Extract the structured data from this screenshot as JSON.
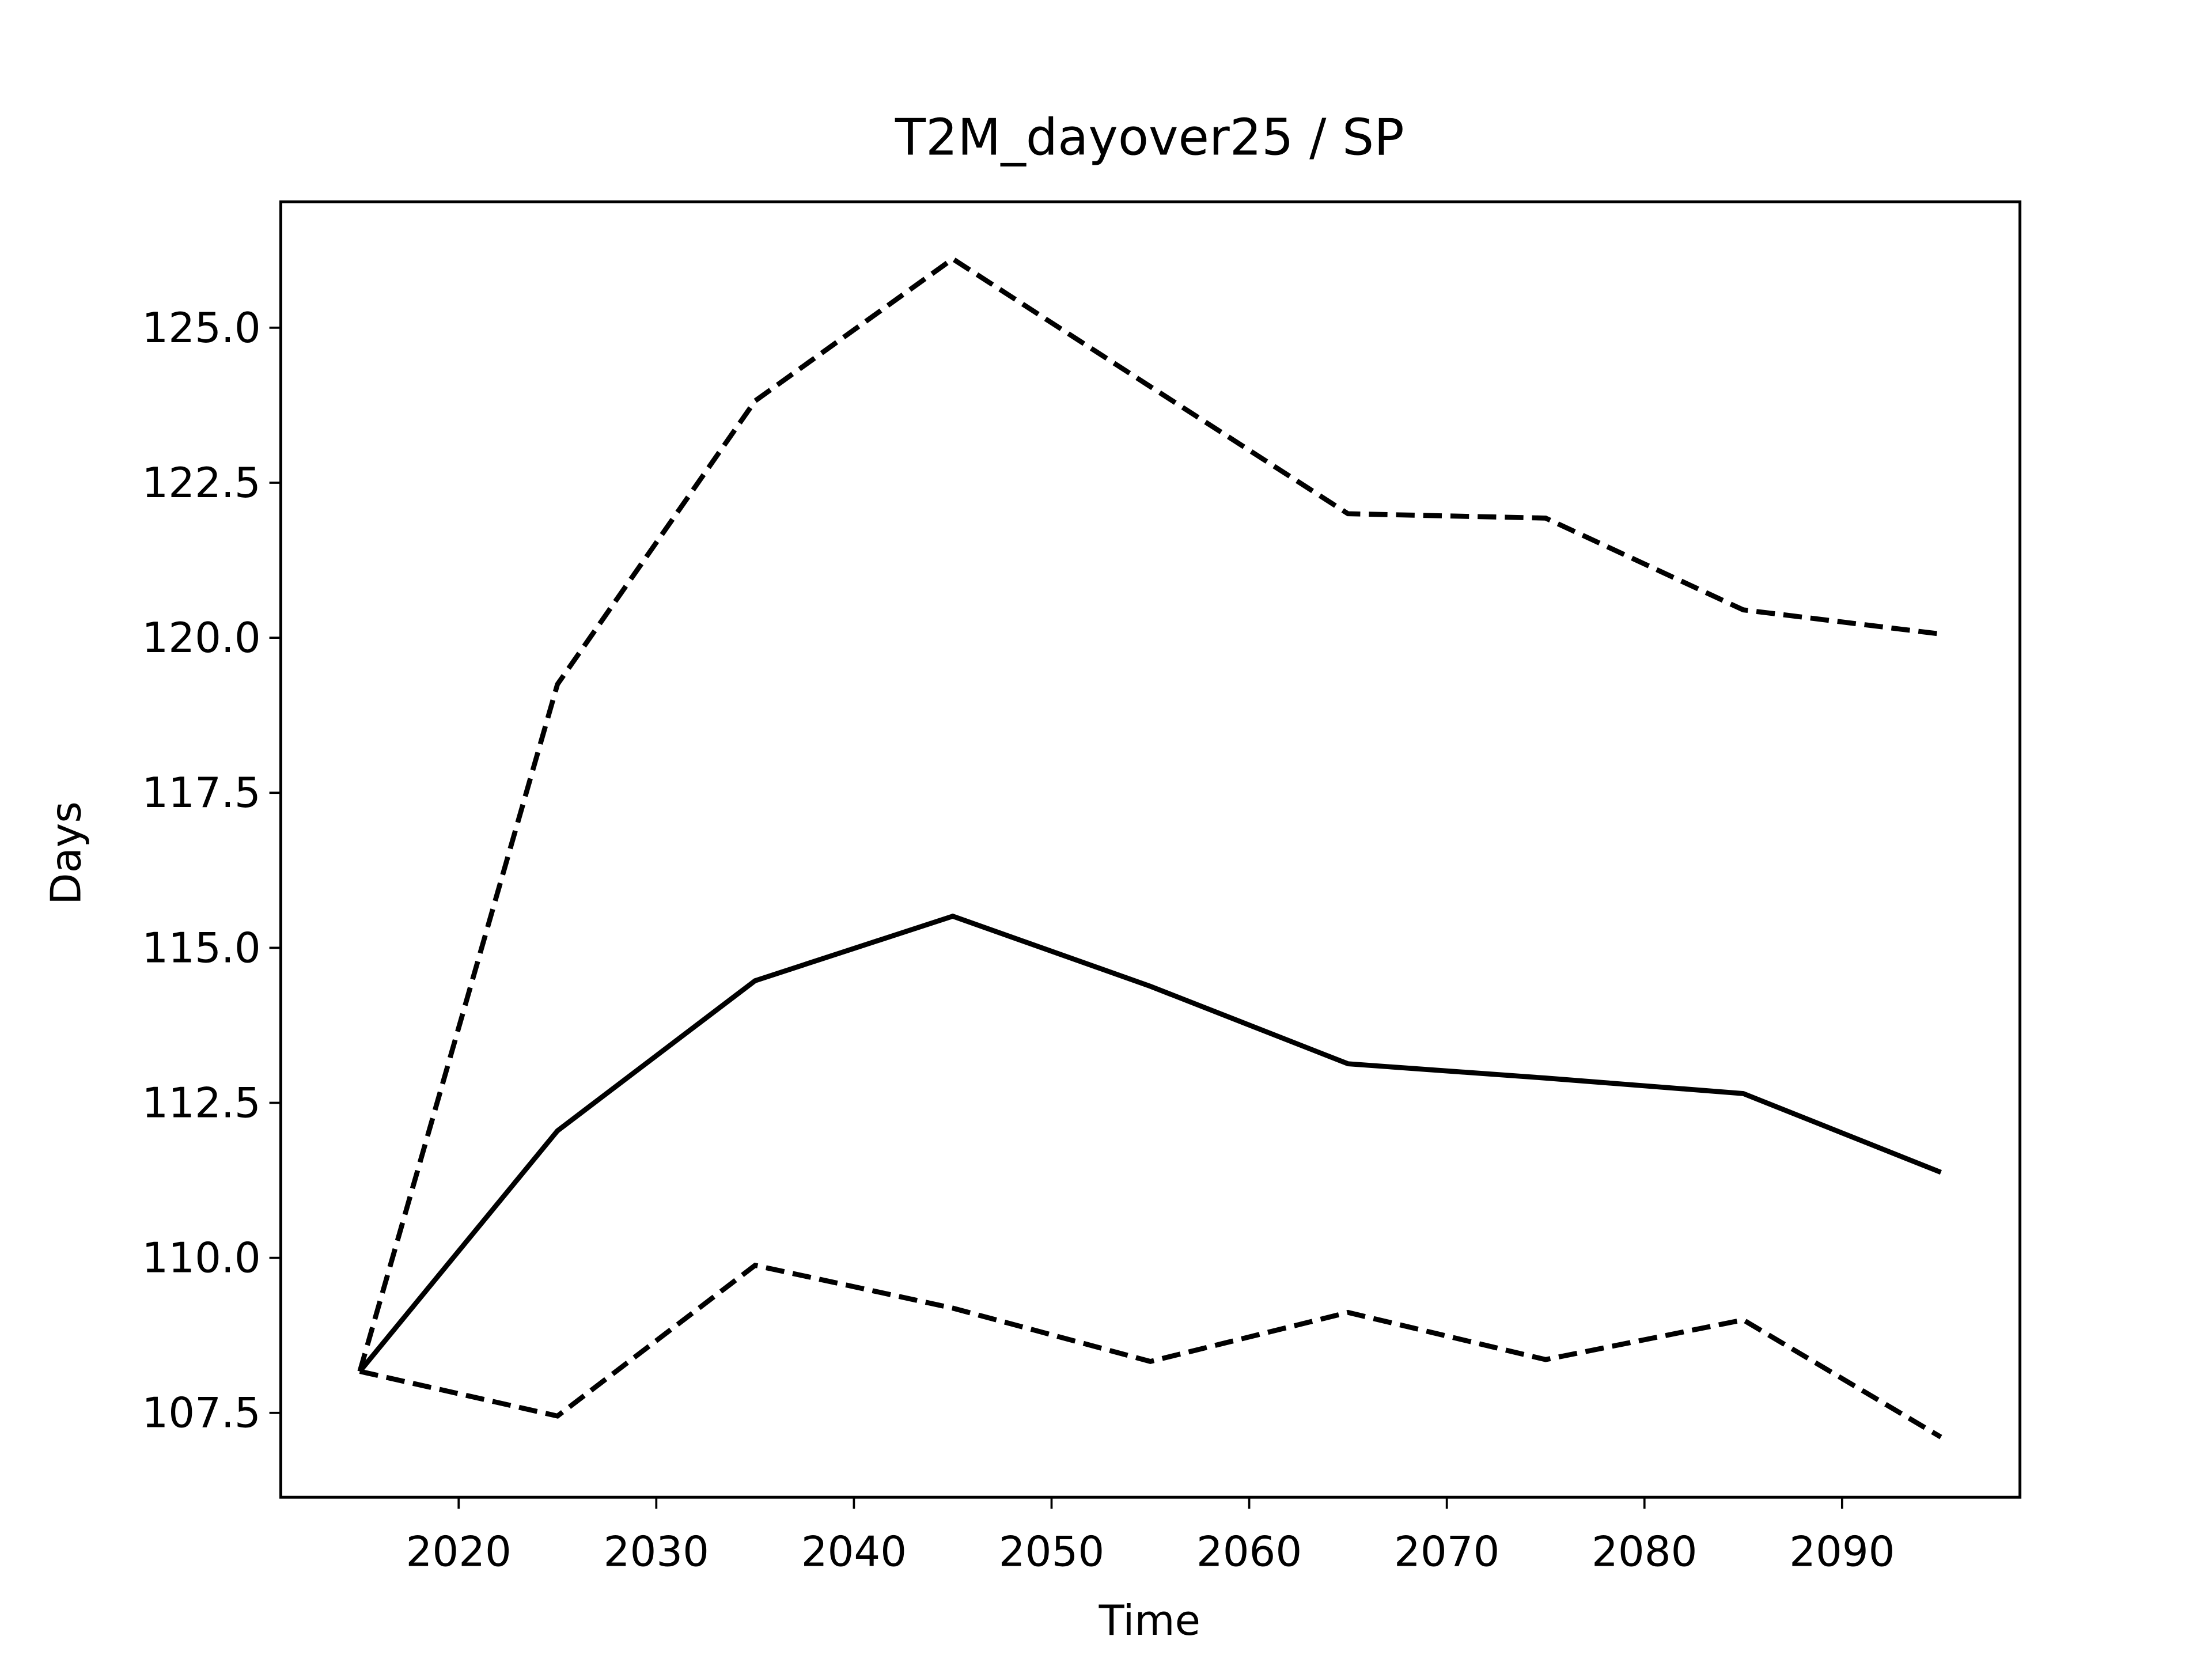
{
  "chart_data": {
    "type": "line",
    "title": "T2M_dayover25 / SP",
    "x_label": "Time",
    "y_label": "Days",
    "x": [
      2015,
      2025,
      2035,
      2045,
      2055,
      2065,
      2075,
      2085,
      2095
    ],
    "series": [
      {
        "color": "#000000",
        "style": "solid",
        "values": [
          108.17,
          112.05,
          114.47,
          115.51,
          114.38,
          113.13,
          112.9,
          112.65,
          111.38
        ]
      },
      {
        "color": "#000000",
        "style": "dashed",
        "values": [
          108.17,
          119.25,
          123.82,
          126.11,
          124.05,
          122.0,
          121.93,
          120.45,
          120.06
        ]
      },
      {
        "color": "#000000",
        "style": "dashed",
        "values": [
          108.17,
          107.45,
          109.88,
          109.19,
          108.33,
          109.12,
          108.36,
          109.0,
          107.11
        ]
      }
    ],
    "xlim": [
      2011,
      2099
    ],
    "xticks": [
      2020,
      2030,
      2040,
      2050,
      2060,
      2070,
      2080,
      2090
    ],
    "ylim": [
      106.14,
      127.03
    ],
    "yticks": [
      {
        "value": 107.5,
        "label": "107.5"
      },
      {
        "value": 110,
        "label": "110.0"
      },
      {
        "value": 112.5,
        "label": "112.5"
      },
      {
        "value": 115,
        "label": "115.0"
      },
      {
        "value": 117.5,
        "label": "117.5"
      },
      {
        "value": 120,
        "label": "120.0"
      },
      {
        "value": 122.5,
        "label": "122.5"
      },
      {
        "value": 125,
        "label": "125.0"
      }
    ],
    "grid": false
  }
}
